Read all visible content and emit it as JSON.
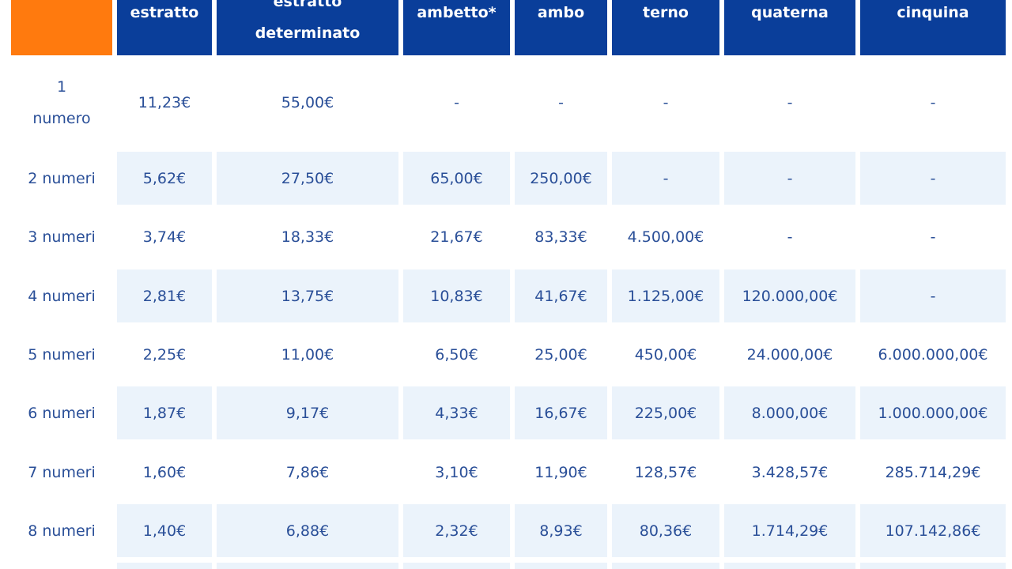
{
  "colors": {
    "header_bg": "#0a3e9a",
    "corner_bg": "#ff7a0e",
    "shaded_row_bg": "#ebf3fb",
    "text": "#2a4f98",
    "header_text": "#ffffff"
  },
  "table": {
    "headers": [
      "",
      "estratto",
      "estratto\ndeterminato",
      "ambetto*",
      "ambo",
      "terno",
      "quaterna",
      "cinquina"
    ],
    "rows": [
      {
        "label": "1\nnumero",
        "values": [
          "11,23€",
          "55,00€",
          "-",
          "-",
          "-",
          "-",
          "-"
        ]
      },
      {
        "label": "2 numeri",
        "values": [
          "5,62€",
          "27,50€",
          "65,00€",
          "250,00€",
          "-",
          "-",
          "-"
        ]
      },
      {
        "label": "3 numeri",
        "values": [
          "3,74€",
          "18,33€",
          "21,67€",
          "83,33€",
          "4.500,00€",
          "-",
          "-"
        ]
      },
      {
        "label": "4 numeri",
        "values": [
          "2,81€",
          "13,75€",
          "10,83€",
          "41,67€",
          "1.125,00€",
          "120.000,00€",
          "-"
        ]
      },
      {
        "label": "5 numeri",
        "values": [
          "2,25€",
          "11,00€",
          "6,50€",
          "25,00€",
          "450,00€",
          "24.000,00€",
          "6.000.000,00€"
        ]
      },
      {
        "label": "6 numeri",
        "values": [
          "1,87€",
          "9,17€",
          "4,33€",
          "16,67€",
          "225,00€",
          "8.000,00€",
          "1.000.000,00€"
        ]
      },
      {
        "label": "7 numeri",
        "values": [
          "1,60€",
          "7,86€",
          "3,10€",
          "11,90€",
          "128,57€",
          "3.428,57€",
          "285.714,29€"
        ]
      },
      {
        "label": "8 numeri",
        "values": [
          "1,40€",
          "6,88€",
          "2,32€",
          "8,93€",
          "80,36€",
          "1.714,29€",
          "107.142,86€"
        ]
      }
    ]
  }
}
